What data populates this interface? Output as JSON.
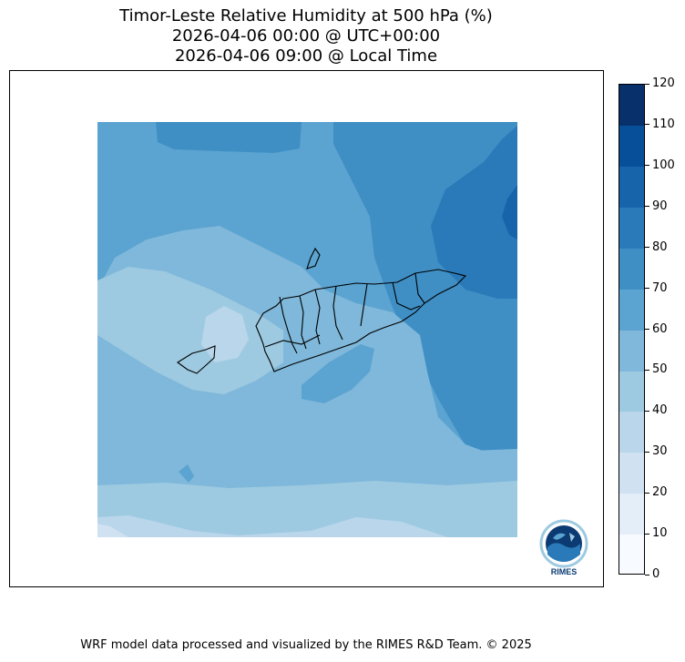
{
  "title": {
    "line1": "Timor-Leste Relative Humidity at 500 hPa (%)",
    "line2": "2026-04-06 00:00 @ UTC+00:00",
    "line3": "2026-04-06 09:00 @ Local Time"
  },
  "map": {
    "variable": "Relative Humidity",
    "level": "500 hPa",
    "unit": "%"
  },
  "colorbar": {
    "levels": [
      0,
      10,
      20,
      30,
      40,
      50,
      60,
      70,
      80,
      90,
      100,
      110,
      120
    ],
    "labels": [
      "0",
      "10",
      "20",
      "30",
      "40",
      "50",
      "60",
      "70",
      "80",
      "90",
      "100",
      "110",
      "120"
    ],
    "colors": [
      "#f7fbff",
      "#e3eef9",
      "#d0e1f2",
      "#bad6eb",
      "#9ecae1",
      "#7fb8da",
      "#5ba3d0",
      "#3f8fc5",
      "#2a7ab9",
      "#1764ab",
      "#084f99",
      "#08306b"
    ]
  },
  "logo": {
    "label": "RIMES",
    "icon": "rimes-globe-icon"
  },
  "footer": "WRF model data processed and visualized by the RIMES R&D Team. © 2025"
}
